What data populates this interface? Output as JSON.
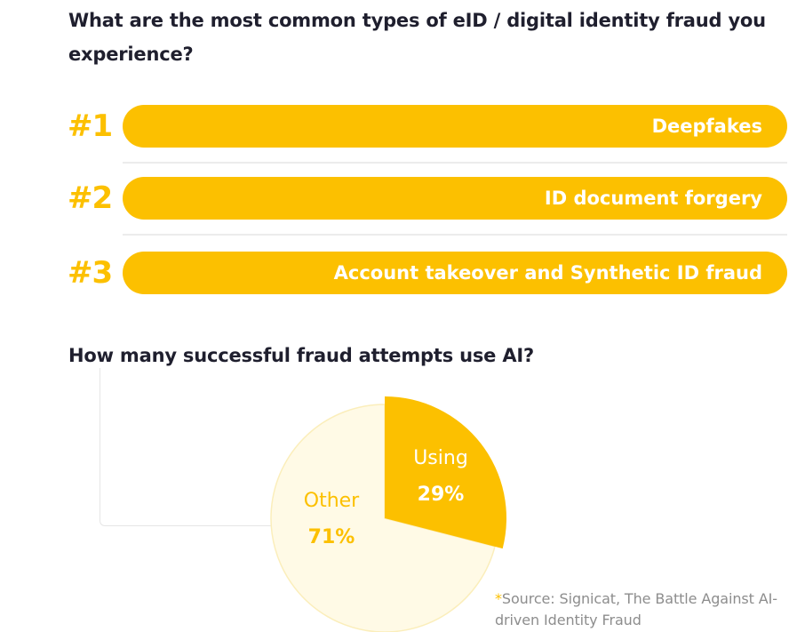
{
  "question1": "What are the most common types of eID / digital identity fraud you experience?",
  "ranking": [
    {
      "rank": "#1",
      "label": "Deepfakes"
    },
    {
      "rank": "#2",
      "label": "ID document forgery"
    },
    {
      "rank": "#3",
      "label": "Account takeover and Synthetic ID fraud"
    }
  ],
  "question2": "How many successful fraud attempts use AI?",
  "chart_data": {
    "type": "pie",
    "title": "How many successful fraud attempts use AI?",
    "slices": [
      {
        "label": "Using",
        "value": 29,
        "display": "29%",
        "color": "#fcc000"
      },
      {
        "label": "Other",
        "value": 71,
        "display": "71%",
        "color": "#fffae6"
      }
    ]
  },
  "source": {
    "star": "*",
    "text": "Source: Signicat, The Battle Against AI-driven Identity Fraud"
  },
  "colors": {
    "accent": "#fcc000",
    "pale": "#fffae6",
    "text": "#1f1f2e",
    "muted": "#8d8d8d"
  }
}
